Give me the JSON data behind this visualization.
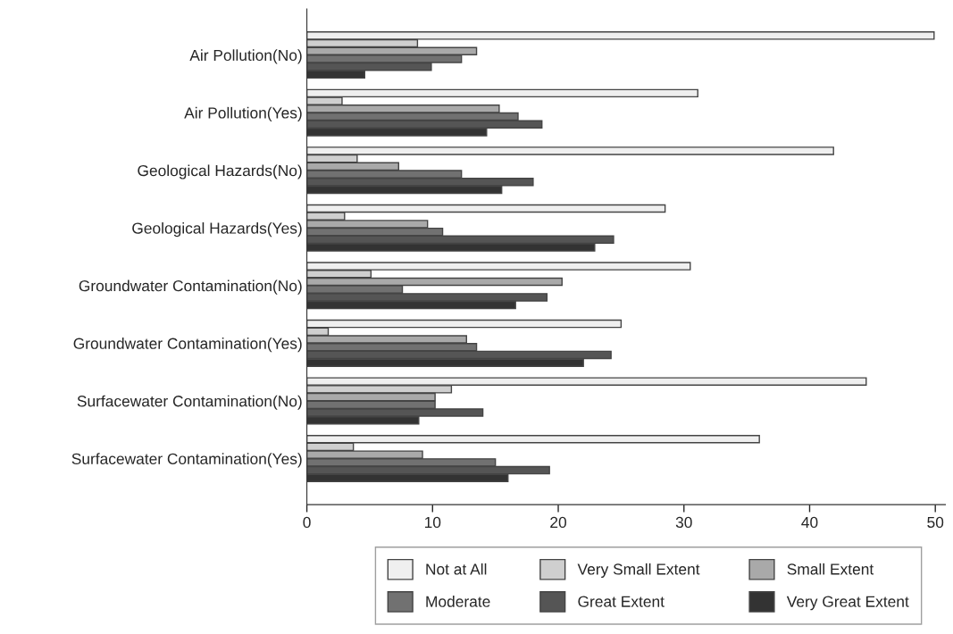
{
  "chart_data": {
    "type": "bar",
    "orientation": "horizontal",
    "categories": [
      "Air Pollution(No)",
      "Air Pollution(Yes)",
      "Geological Hazards(No)",
      "Geological Hazards(Yes)",
      "Groundwater Contamination(No)",
      "Groundwater Contamination(Yes)",
      "Surfacewater Contamination(No)",
      "Surfacewater Contamination(Yes)"
    ],
    "series": [
      {
        "name": "Not at All",
        "color": "#efefef",
        "values": [
          49.9,
          31.1,
          41.9,
          28.5,
          30.5,
          25.0,
          44.5,
          36.0
        ]
      },
      {
        "name": "Very Small Extent",
        "color": "#cfcfcf",
        "values": [
          8.8,
          2.8,
          4.0,
          3.0,
          5.1,
          1.7,
          11.5,
          3.7
        ]
      },
      {
        "name": "Small Extent",
        "color": "#a9a9a9",
        "values": [
          13.5,
          15.3,
          7.3,
          9.6,
          20.3,
          12.7,
          10.2,
          9.2
        ]
      },
      {
        "name": "Moderate",
        "color": "#717171",
        "values": [
          12.3,
          16.8,
          12.3,
          10.8,
          7.6,
          13.5,
          10.2,
          15.0
        ]
      },
      {
        "name": "Great Extent",
        "color": "#555555",
        "values": [
          9.9,
          18.7,
          18.0,
          24.4,
          19.1,
          24.2,
          14.0,
          19.3
        ]
      },
      {
        "name": "Very Great Extent",
        "color": "#333333",
        "values": [
          4.6,
          14.3,
          15.5,
          22.9,
          16.6,
          22.0,
          8.9,
          16.0
        ]
      }
    ],
    "xlim": [
      0,
      50.8
    ],
    "xticks": [
      0,
      10,
      20,
      30,
      40,
      50
    ],
    "grid": false,
    "legend": "bottom"
  }
}
